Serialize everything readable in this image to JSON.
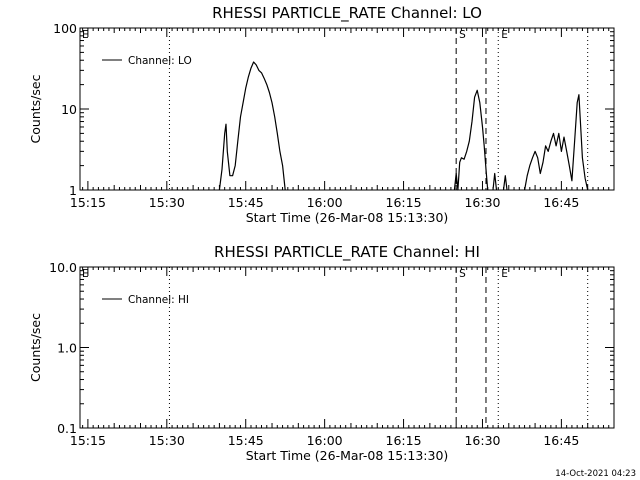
{
  "chart_data": [
    {
      "type": "line",
      "title": "RHESSI PARTICLE_RATE Channel: LO",
      "xlabel": "Start Time (26-Mar-08 15:13:30)",
      "ylabel": "Counts/sec",
      "yscale": "log",
      "ylim": [
        1,
        100
      ],
      "yticks": [
        1,
        10,
        100
      ],
      "ytick_labels": [
        "1",
        "10",
        "100"
      ],
      "xlim": [
        "15:13:30",
        "16:55:00"
      ],
      "xticks": [
        "15:15",
        "15:30",
        "15:45",
        "16:00",
        "16:15",
        "16:30",
        "16:45"
      ],
      "legend": {
        "entries": [
          "Channel: LO"
        ],
        "position": "top-left"
      },
      "markers": [
        {
          "time": "15:30:30",
          "style": "dotted",
          "label": ""
        },
        {
          "time": "16:25:00",
          "style": "dashed",
          "label": "S"
        },
        {
          "time": "16:30:40",
          "style": "dashed",
          "label": ""
        },
        {
          "time": "16:33:00",
          "style": "dotted",
          "label": "E"
        },
        {
          "time": "16:50:00",
          "style": "dotted",
          "label": ""
        }
      ],
      "corner_label": "E",
      "series": [
        {
          "name": "Channel: LO",
          "segments": [
            [
              [
                "15:40:00",
                1
              ],
              [
                "15:40:30",
                1.8
              ],
              [
                "15:41:00",
                5
              ],
              [
                "15:41:15",
                6.5
              ],
              [
                "15:41:30",
                3
              ],
              [
                "15:42:00",
                1.5
              ],
              [
                "15:42:30",
                1.5
              ],
              [
                "15:43:00",
                2
              ],
              [
                "15:43:30",
                4
              ],
              [
                "15:44:00",
                8
              ],
              [
                "15:44:30",
                12
              ],
              [
                "15:45:00",
                18
              ],
              [
                "15:45:30",
                25
              ],
              [
                "15:46:00",
                32
              ],
              [
                "15:46:30",
                38
              ],
              [
                "15:47:00",
                35
              ],
              [
                "15:47:30",
                30
              ],
              [
                "15:48:00",
                28
              ],
              [
                "15:48:30",
                24
              ],
              [
                "15:49:00",
                20
              ],
              [
                "15:49:30",
                16
              ],
              [
                "15:50:00",
                12
              ],
              [
                "15:50:30",
                8
              ],
              [
                "15:51:00",
                5
              ],
              [
                "15:51:30",
                3
              ],
              [
                "15:52:00",
                2
              ],
              [
                "15:52:30",
                1
              ]
            ],
            [
              [
                "16:24:40",
                1
              ],
              [
                "16:25:00",
                1.6
              ],
              [
                "16:25:20",
                1
              ],
              [
                "16:25:40",
                2.2
              ],
              [
                "16:26:00",
                2.5
              ],
              [
                "16:26:30",
                2.4
              ],
              [
                "16:27:00",
                3
              ],
              [
                "16:27:30",
                4
              ],
              [
                "16:28:00",
                7
              ],
              [
                "16:28:30",
                14
              ],
              [
                "16:29:00",
                17
              ],
              [
                "16:29:30",
                12
              ],
              [
                "16:30:00",
                6
              ],
              [
                "16:30:20",
                3.5
              ],
              [
                "16:30:40",
                1.8
              ],
              [
                "16:31:00",
                1
              ]
            ],
            [
              [
                "16:32:00",
                1
              ],
              [
                "16:32:20",
                1.6
              ],
              [
                "16:32:40",
                1
              ]
            ],
            [
              [
                "16:34:00",
                1
              ],
              [
                "16:34:20",
                1.5
              ],
              [
                "16:34:40",
                1
              ]
            ],
            [
              [
                "16:38:00",
                1
              ],
              [
                "16:38:30",
                1.5
              ],
              [
                "16:39:00",
                2
              ],
              [
                "16:39:30",
                2.5
              ],
              [
                "16:40:00",
                3
              ],
              [
                "16:40:30",
                2.5
              ],
              [
                "16:41:00",
                1.6
              ],
              [
                "16:41:30",
                2.2
              ],
              [
                "16:42:00",
                3.5
              ],
              [
                "16:42:30",
                3
              ],
              [
                "16:43:00",
                4
              ],
              [
                "16:43:30",
                5
              ],
              [
                "16:44:00",
                3.5
              ],
              [
                "16:44:30",
                5
              ],
              [
                "16:45:00",
                3
              ],
              [
                "16:45:30",
                4.5
              ],
              [
                "16:46:00",
                3
              ],
              [
                "16:46:30",
                2
              ],
              [
                "16:47:00",
                1.3
              ],
              [
                "16:47:30",
                3.8
              ],
              [
                "16:48:00",
                12
              ],
              [
                "16:48:20",
                15
              ],
              [
                "16:48:40",
                6
              ],
              [
                "16:49:00",
                2.5
              ],
              [
                "16:49:30",
                1.4
              ],
              [
                "16:50:00",
                1
              ]
            ]
          ]
        }
      ]
    },
    {
      "type": "line",
      "title": "RHESSI PARTICLE_RATE Channel: HI",
      "xlabel": "Start Time (26-Mar-08 15:13:30)",
      "ylabel": "Counts/sec",
      "yscale": "log",
      "ylim": [
        0.1,
        10
      ],
      "yticks": [
        0.1,
        1,
        10
      ],
      "ytick_labels": [
        "0.1",
        "1.0",
        "10.0"
      ],
      "xlim": [
        "15:13:30",
        "16:55:00"
      ],
      "xticks": [
        "15:15",
        "15:30",
        "15:45",
        "16:00",
        "16:15",
        "16:30",
        "16:45"
      ],
      "legend": {
        "entries": [
          "Channel: HI"
        ],
        "position": "top-left"
      },
      "markers": [
        {
          "time": "15:30:30",
          "style": "dotted",
          "label": ""
        },
        {
          "time": "16:25:00",
          "style": "dashed",
          "label": "S"
        },
        {
          "time": "16:30:40",
          "style": "dashed",
          "label": ""
        },
        {
          "time": "16:33:00",
          "style": "dotted",
          "label": "E"
        },
        {
          "time": "16:50:00",
          "style": "dotted",
          "label": ""
        }
      ],
      "corner_label": "E",
      "series": [
        {
          "name": "Channel: HI",
          "segments": []
        }
      ]
    }
  ],
  "footer": {
    "timestamp": "14-Oct-2021 04:23"
  }
}
